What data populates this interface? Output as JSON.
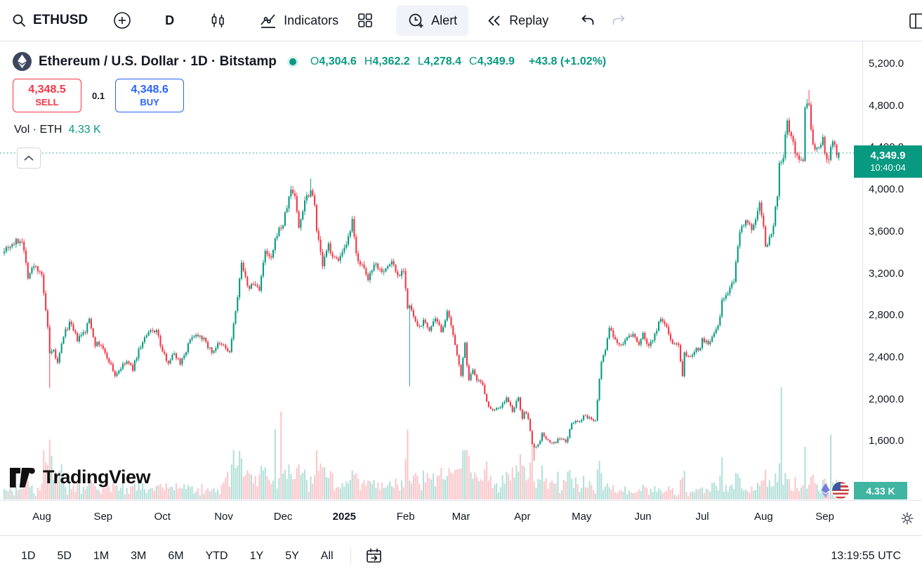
{
  "top_toolbar": {
    "symbol": "ETHUSD",
    "interval": "D",
    "indicators_label": "Indicators",
    "alert_label": "Alert",
    "replay_label": "Replay"
  },
  "header": {
    "title": "Ethereum / U.S. Dollar · 1D · Bitstamp",
    "ohlc": [
      {
        "label": "O",
        "value": "4,304.6"
      },
      {
        "label": "H",
        "value": "4,362.2"
      },
      {
        "label": "L",
        "value": "4,278.4"
      },
      {
        "label": "C",
        "value": "4,349.9"
      }
    ],
    "change": "+43.8 (+1.02%)"
  },
  "order_panel": {
    "sell_price": "4,348.5",
    "sell_label": "SELL",
    "spread": "0.1",
    "buy_price": "4,348.6",
    "buy_label": "BUY"
  },
  "volume_row": {
    "label": "Vol · ETH",
    "value": "4.33 K"
  },
  "price_axis": {
    "price_label": {
      "price": "4,349.9",
      "countdown": "10:40:04"
    },
    "volume_label": "4.33 K"
  },
  "bottom_toolbar": {
    "ranges": [
      "1D",
      "5D",
      "1M",
      "3M",
      "6M",
      "YTD",
      "1Y",
      "5Y",
      "All"
    ],
    "clock": "13:19:55 UTC"
  },
  "watermark": "TradingView",
  "colors": {
    "up": "#089981",
    "down": "#F23645",
    "buy": "#2962FF",
    "sell": "#F23645",
    "label_teal": "#089981"
  },
  "chart_data": {
    "type": "candlestick",
    "title": "Ethereum / U.S. Dollar · 1D · Bitstamp",
    "symbol": "ETHUSD",
    "exchange": "Bitstamp",
    "timeframe": "1D",
    "y_ticks": [
      5200,
      4800,
      4400,
      4000,
      3600,
      3200,
      2800,
      2400,
      2000,
      1600
    ],
    "y_range_visible": [
      1040,
      5420
    ],
    "x_labels": [
      {
        "label": "Aug",
        "day": 19
      },
      {
        "label": "Sep",
        "day": 50
      },
      {
        "label": "Oct",
        "day": 80
      },
      {
        "label": "Nov",
        "day": 111
      },
      {
        "label": "Dec",
        "day": 141
      },
      {
        "label": "2025",
        "day": 172,
        "year": true
      },
      {
        "label": "Feb",
        "day": 203
      },
      {
        "label": "Mar",
        "day": 231
      },
      {
        "label": "Apr",
        "day": 262
      },
      {
        "label": "May",
        "day": 292
      },
      {
        "label": "Jun",
        "day": 323
      },
      {
        "label": "Jul",
        "day": 353
      },
      {
        "label": "Aug",
        "day": 384
      },
      {
        "label": "Sep",
        "day": 415
      }
    ],
    "num_candles": 423,
    "seed": 7,
    "current_price": 4349.9,
    "last_candle": {
      "o": 4304.6,
      "h": 4362.2,
      "l": 4278.4,
      "c": 4349.9,
      "change": 43.8,
      "change_pct": 1.02
    },
    "close_waypoints": [
      [
        0,
        3440
      ],
      [
        5,
        3490
      ],
      [
        9,
        3530
      ],
      [
        12,
        3180
      ],
      [
        15,
        3270
      ],
      [
        18,
        3230
      ],
      [
        19,
        3200
      ],
      [
        20,
        2990
      ],
      [
        22,
        2690
      ],
      [
        23,
        2420
      ],
      [
        25,
        2460
      ],
      [
        27,
        2340
      ],
      [
        30,
        2610
      ],
      [
        33,
        2730
      ],
      [
        37,
        2570
      ],
      [
        41,
        2650
      ],
      [
        43,
        2770
      ],
      [
        46,
        2530
      ],
      [
        49,
        2520
      ],
      [
        51,
        2430
      ],
      [
        53,
        2370
      ],
      [
        56,
        2230
      ],
      [
        59,
        2300
      ],
      [
        62,
        2360
      ],
      [
        65,
        2290
      ],
      [
        68,
        2470
      ],
      [
        71,
        2580
      ],
      [
        74,
        2650
      ],
      [
        77,
        2660
      ],
      [
        80,
        2450
      ],
      [
        83,
        2360
      ],
      [
        86,
        2440
      ],
      [
        89,
        2350
      ],
      [
        92,
        2470
      ],
      [
        95,
        2610
      ],
      [
        99,
        2620
      ],
      [
        102,
        2540
      ],
      [
        105,
        2450
      ],
      [
        108,
        2520
      ],
      [
        111,
        2510
      ],
      [
        114,
        2440
      ],
      [
        116,
        2720
      ],
      [
        118,
        2950
      ],
      [
        120,
        3330
      ],
      [
        123,
        3060
      ],
      [
        126,
        3100
      ],
      [
        129,
        3060
      ],
      [
        132,
        3400
      ],
      [
        135,
        3330
      ],
      [
        138,
        3590
      ],
      [
        141,
        3670
      ],
      [
        143,
        3840
      ],
      [
        145,
        4000
      ],
      [
        147,
        3950
      ],
      [
        149,
        3630
      ],
      [
        152,
        3910
      ],
      [
        155,
        4000
      ],
      [
        157,
        3890
      ],
      [
        158,
        3620
      ],
      [
        161,
        3280
      ],
      [
        164,
        3470
      ],
      [
        167,
        3330
      ],
      [
        170,
        3360
      ],
      [
        173,
        3450
      ],
      [
        176,
        3690
      ],
      [
        178,
        3380
      ],
      [
        181,
        3270
      ],
      [
        184,
        3140
      ],
      [
        187,
        3310
      ],
      [
        190,
        3240
      ],
      [
        193,
        3240
      ],
      [
        196,
        3320
      ],
      [
        199,
        3180
      ],
      [
        202,
        3250
      ],
      [
        204,
        2870
      ],
      [
        205,
        2880
      ],
      [
        207,
        2790
      ],
      [
        209,
        2680
      ],
      [
        212,
        2740
      ],
      [
        215,
        2670
      ],
      [
        218,
        2750
      ],
      [
        221,
        2660
      ],
      [
        224,
        2820
      ],
      [
        226,
        2700
      ],
      [
        228,
        2500
      ],
      [
        230,
        2350
      ],
      [
        231,
        2240
      ],
      [
        233,
        2520
      ],
      [
        235,
        2170
      ],
      [
        237,
        2300
      ],
      [
        239,
        2200
      ],
      [
        242,
        2140
      ],
      [
        245,
        1920
      ],
      [
        248,
        1910
      ],
      [
        251,
        1930
      ],
      [
        254,
        2010
      ],
      [
        257,
        1890
      ],
      [
        260,
        2010
      ],
      [
        262,
        1820
      ],
      [
        263,
        1890
      ],
      [
        265,
        1810
      ],
      [
        267,
        1580
      ],
      [
        268,
        1550
      ],
      [
        270,
        1560
      ],
      [
        272,
        1670
      ],
      [
        275,
        1600
      ],
      [
        278,
        1580
      ],
      [
        281,
        1630
      ],
      [
        284,
        1590
      ],
      [
        287,
        1760
      ],
      [
        289,
        1800
      ],
      [
        292,
        1790
      ],
      [
        293,
        1840
      ],
      [
        296,
        1820
      ],
      [
        299,
        1810
      ],
      [
        301,
        2210
      ],
      [
        302,
        2350
      ],
      [
        304,
        2480
      ],
      [
        306,
        2680
      ],
      [
        309,
        2550
      ],
      [
        312,
        2530
      ],
      [
        315,
        2580
      ],
      [
        318,
        2620
      ],
      [
        321,
        2530
      ],
      [
        323,
        2620
      ],
      [
        326,
        2510
      ],
      [
        329,
        2620
      ],
      [
        332,
        2770
      ],
      [
        335,
        2680
      ],
      [
        338,
        2540
      ],
      [
        341,
        2520
      ],
      [
        343,
        2240
      ],
      [
        344,
        2440
      ],
      [
        347,
        2420
      ],
      [
        350,
        2480
      ],
      [
        352,
        2500
      ],
      [
        353,
        2570
      ],
      [
        356,
        2540
      ],
      [
        359,
        2610
      ],
      [
        362,
        2770
      ],
      [
        363,
        2950
      ],
      [
        366,
        3010
      ],
      [
        369,
        3140
      ],
      [
        371,
        3480
      ],
      [
        372,
        3590
      ],
      [
        375,
        3740
      ],
      [
        378,
        3630
      ],
      [
        381,
        3770
      ],
      [
        382,
        3870
      ],
      [
        384,
        3680
      ],
      [
        385,
        3450
      ],
      [
        387,
        3530
      ],
      [
        389,
        3680
      ],
      [
        391,
        3940
      ],
      [
        392,
        4260
      ],
      [
        394,
        4320
      ],
      [
        396,
        4700
      ],
      [
        397,
        4550
      ],
      [
        399,
        4440
      ],
      [
        401,
        4310
      ],
      [
        404,
        4280
      ],
      [
        405,
        4780
      ],
      [
        407,
        4790
      ],
      [
        409,
        4400
      ],
      [
        412,
        4370
      ],
      [
        414,
        4480
      ],
      [
        415,
        4320
      ],
      [
        417,
        4300
      ],
      [
        419,
        4450
      ],
      [
        420,
        4390
      ],
      [
        421,
        4300
      ],
      [
        422,
        4349.9
      ]
    ],
    "wick_overrides": [
      {
        "day": 23,
        "low": 2110
      },
      {
        "day": 155,
        "high": 4107
      },
      {
        "day": 205,
        "low": 2125
      },
      {
        "day": 268,
        "low": 1415
      },
      {
        "day": 407,
        "high": 4953
      }
    ],
    "volume_eras": [
      [
        0,
        19,
        0.7
      ],
      [
        19,
        30,
        1.4
      ],
      [
        30,
        110,
        0.8
      ],
      [
        110,
        170,
        1.5
      ],
      [
        170,
        203,
        1.1
      ],
      [
        203,
        262,
        1.4
      ],
      [
        262,
        300,
        1.2
      ],
      [
        300,
        355,
        0.65
      ],
      [
        355,
        423,
        0.95
      ]
    ],
    "volume_spikes": [
      {
        "day": 23,
        "px": 85
      },
      {
        "day": 24,
        "px": 62
      },
      {
        "day": 137,
        "px": 100
      },
      {
        "day": 140,
        "px": 125
      },
      {
        "day": 204,
        "px": 100
      },
      {
        "day": 233,
        "px": 70
      },
      {
        "day": 267,
        "px": 90
      },
      {
        "day": 301,
        "px": 55
      },
      {
        "day": 363,
        "px": 60
      },
      {
        "day": 393,
        "px": 160
      },
      {
        "day": 405,
        "px": 75
      },
      {
        "day": 418,
        "px": 92
      },
      {
        "day": 422,
        "px": 10
      }
    ],
    "volume_last": "4.33 K"
  }
}
